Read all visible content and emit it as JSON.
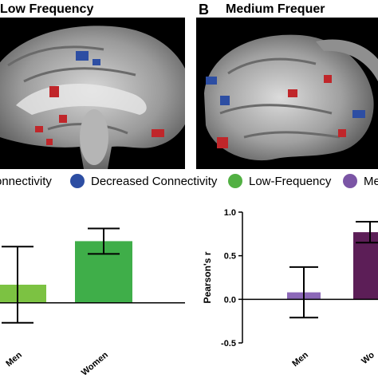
{
  "panels": {
    "a": {
      "title": "Low Frequency"
    },
    "b": {
      "letter": "B",
      "title": "Medium Frequer"
    }
  },
  "legend": [
    {
      "label": "onnectivity",
      "color": "#c0262a"
    },
    {
      "label": "Decreased Connectivity",
      "color": "#2d4ea3"
    },
    {
      "label": "Low-Frequency",
      "color": "#52b043"
    },
    {
      "label": "Med",
      "color": "#7b55a5"
    }
  ],
  "chart_data": [
    {
      "type": "bar",
      "categories": [
        "Men",
        "Women"
      ],
      "values": [
        0.2,
        0.68
      ],
      "errors": [
        0.42,
        0.14
      ],
      "colors": [
        "#7cc242",
        "#3fae49"
      ],
      "ylim": [
        -0.6,
        1.0
      ]
    },
    {
      "type": "bar",
      "categories": [
        "Men",
        "Wo"
      ],
      "values": [
        0.08,
        0.77
      ],
      "errors": [
        0.29,
        0.12
      ],
      "colors": [
        "#8c68b8",
        "#5c1e57"
      ],
      "ylabel": "Pearson's r",
      "ylim": [
        -0.5,
        1.0
      ],
      "yticks": [
        "1.0",
        "0.5",
        "0.0",
        "-0.5"
      ]
    }
  ]
}
